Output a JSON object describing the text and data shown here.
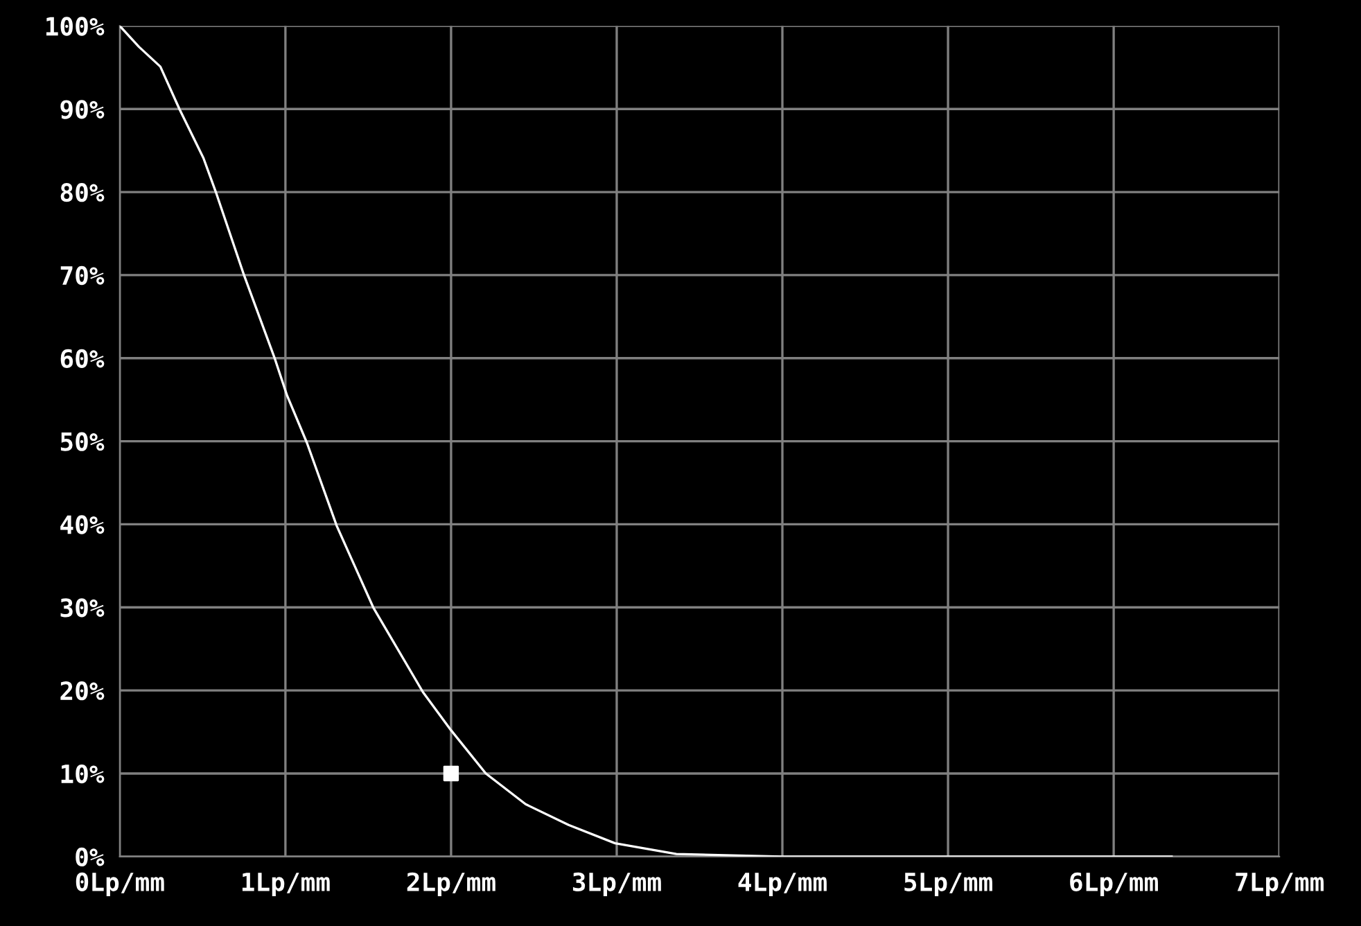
{
  "chart_data": {
    "type": "line",
    "x": [
      0,
      0.115,
      0.245,
      0.36,
      0.505,
      0.58,
      0.75,
      0.935,
      1.01,
      1.13,
      1.31,
      1.53,
      1.83,
      2.0,
      2.21,
      2.45,
      2.71,
      2.99,
      3.36,
      4.0,
      5.0,
      6.35
    ],
    "series": [
      {
        "color": "#ffffff",
        "values": [
          100,
          97.5,
          95.1,
          90,
          84.1,
          80,
          70,
          60,
          55.5,
          49.8,
          39.8,
          30,
          19.8,
          15.2,
          10,
          6.3,
          3.8,
          1.6,
          0.3,
          0,
          0,
          0
        ]
      },
      {
        "type": "scatter",
        "marker": "square",
        "color": "#ffffff",
        "x": [
          2.0
        ],
        "values": [
          10
        ]
      }
    ],
    "xlim": [
      0,
      7
    ],
    "ylim": [
      0,
      100
    ],
    "xticks": [
      {
        "value": 0,
        "label": "0Lp/mm"
      },
      {
        "value": 1,
        "label": "1Lp/mm"
      },
      {
        "value": 2,
        "label": "2Lp/mm"
      },
      {
        "value": 3,
        "label": "3Lp/mm"
      },
      {
        "value": 4,
        "label": "4Lp/mm"
      },
      {
        "value": 5,
        "label": "5Lp/mm"
      },
      {
        "value": 6,
        "label": "6Lp/mm"
      },
      {
        "value": 7,
        "label": "7Lp/mm"
      }
    ],
    "yticks": [
      {
        "value": 0,
        "label": "0%"
      },
      {
        "value": 10,
        "label": "10%"
      },
      {
        "value": 20,
        "label": "20%"
      },
      {
        "value": 30,
        "label": "30%"
      },
      {
        "value": 40,
        "label": "40%"
      },
      {
        "value": 50,
        "label": "50%"
      },
      {
        "value": 60,
        "label": "60%"
      },
      {
        "value": 70,
        "label": "70%"
      },
      {
        "value": 80,
        "label": "80%"
      },
      {
        "value": 90,
        "label": "90%"
      },
      {
        "value": 100,
        "label": "100%"
      }
    ],
    "grid": true
  }
}
